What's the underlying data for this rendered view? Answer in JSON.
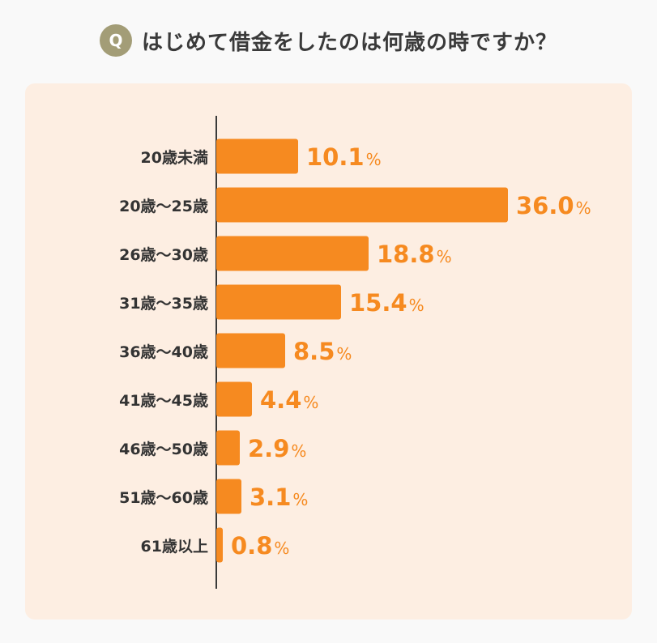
{
  "question": {
    "badge": "Q",
    "text": "はじめて借金をしたのは何歳の時ですか？"
  },
  "colors": {
    "bar": "#f68a20",
    "value_text": "#f68a20",
    "axis": "#3a3a3a",
    "label_text": "#333333",
    "badge": "#a39d77",
    "panel": "#fdeee2"
  },
  "chart_data": {
    "type": "bar",
    "orientation": "horizontal",
    "title": "はじめて借金をしたのは何歳の時ですか？",
    "unit": "%",
    "categories": [
      "20歳未満",
      "20歳〜25歳",
      "26歳〜30歳",
      "31歳〜35歳",
      "36歳〜40歳",
      "41歳〜45歳",
      "46歳〜50歳",
      "51歳〜60歳",
      "61歳以上"
    ],
    "values": [
      10.1,
      36.0,
      18.8,
      15.4,
      8.5,
      4.4,
      2.9,
      3.1,
      0.8
    ],
    "value_labels": [
      "10.1",
      "36.0",
      "18.8",
      "15.4",
      "8.5",
      "4.4",
      "2.9",
      "3.1",
      "0.8"
    ],
    "xlim": [
      0,
      36.0
    ],
    "grid": false,
    "legend": "none"
  }
}
